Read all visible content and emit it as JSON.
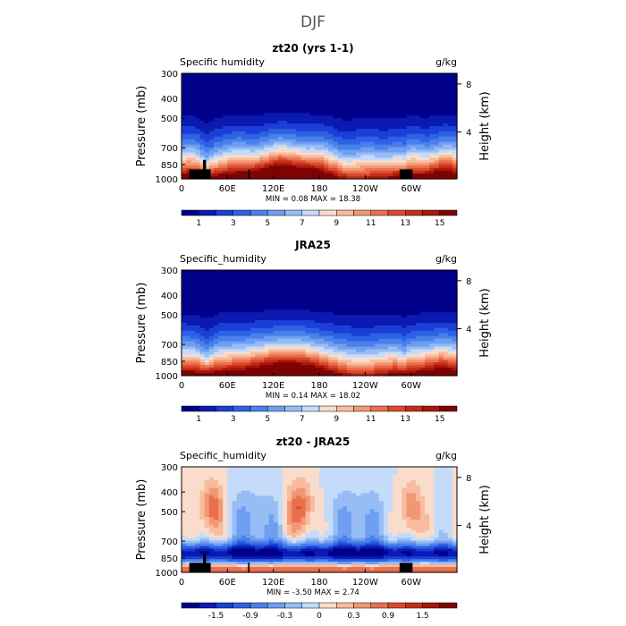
{
  "figure_title": "DJF",
  "chart_data": [
    {
      "type": "heatmap",
      "title": "zt20 (yrs 1-1)",
      "variable": "Specific humidity",
      "units": "g/kg",
      "ylabel": "Pressure (mb)",
      "y2label": "Height (km)",
      "xticks": [
        "0",
        "60E",
        "120E",
        "180",
        "120W",
        "60W"
      ],
      "xlim": [
        0,
        360
      ],
      "yticks": [
        "300",
        "400",
        "500",
        "700",
        "850",
        "1000"
      ],
      "ylim": [
        1000,
        300
      ],
      "y2ticks": [
        "8",
        "4"
      ],
      "stats": "MIN =    0.08   MAX =   18.38",
      "colorbar_ticks": [
        "1",
        "3",
        "5",
        "7",
        "9",
        "11",
        "13",
        "15"
      ],
      "colorbar_range": [
        0,
        16
      ],
      "field": "humidity"
    },
    {
      "type": "heatmap",
      "title": "JRA25",
      "variable": "Specific_humidity",
      "units": "g/kg",
      "ylabel": "Pressure (mb)",
      "y2label": "Height (km)",
      "xticks": [
        "0",
        "60E",
        "120E",
        "180",
        "120W",
        "60W"
      ],
      "xlim": [
        0,
        360
      ],
      "yticks": [
        "300",
        "400",
        "500",
        "700",
        "850",
        "1000"
      ],
      "ylim": [
        1000,
        300
      ],
      "y2ticks": [
        "8",
        "4"
      ],
      "stats": "MIN =    0.14   MAX =   18.02",
      "colorbar_ticks": [
        "1",
        "3",
        "5",
        "7",
        "9",
        "11",
        "13",
        "15"
      ],
      "colorbar_range": [
        0,
        16
      ],
      "field": "humidity"
    },
    {
      "type": "heatmap",
      "title": "zt20 - JRA25",
      "variable": "Specific_humidity",
      "units": "g/kg",
      "ylabel": "Pressure (mb)",
      "y2label": "Height (km)",
      "xticks": [
        "0",
        "60E",
        "120E",
        "180",
        "120W",
        "60W"
      ],
      "xlim": [
        0,
        360
      ],
      "yticks": [
        "300",
        "400",
        "500",
        "700",
        "850",
        "1000"
      ],
      "ylim": [
        1000,
        300
      ],
      "y2ticks": [
        "8",
        "4"
      ],
      "stats": "MIN =   -3.50   MAX =    2.74",
      "colorbar_ticks": [
        "-1.5",
        "-0.9",
        "-0.3",
        "0",
        "0.3",
        "0.9",
        "1.5"
      ],
      "colorbar_range": [
        -2.1,
        2.1
      ],
      "field": "difference"
    }
  ]
}
